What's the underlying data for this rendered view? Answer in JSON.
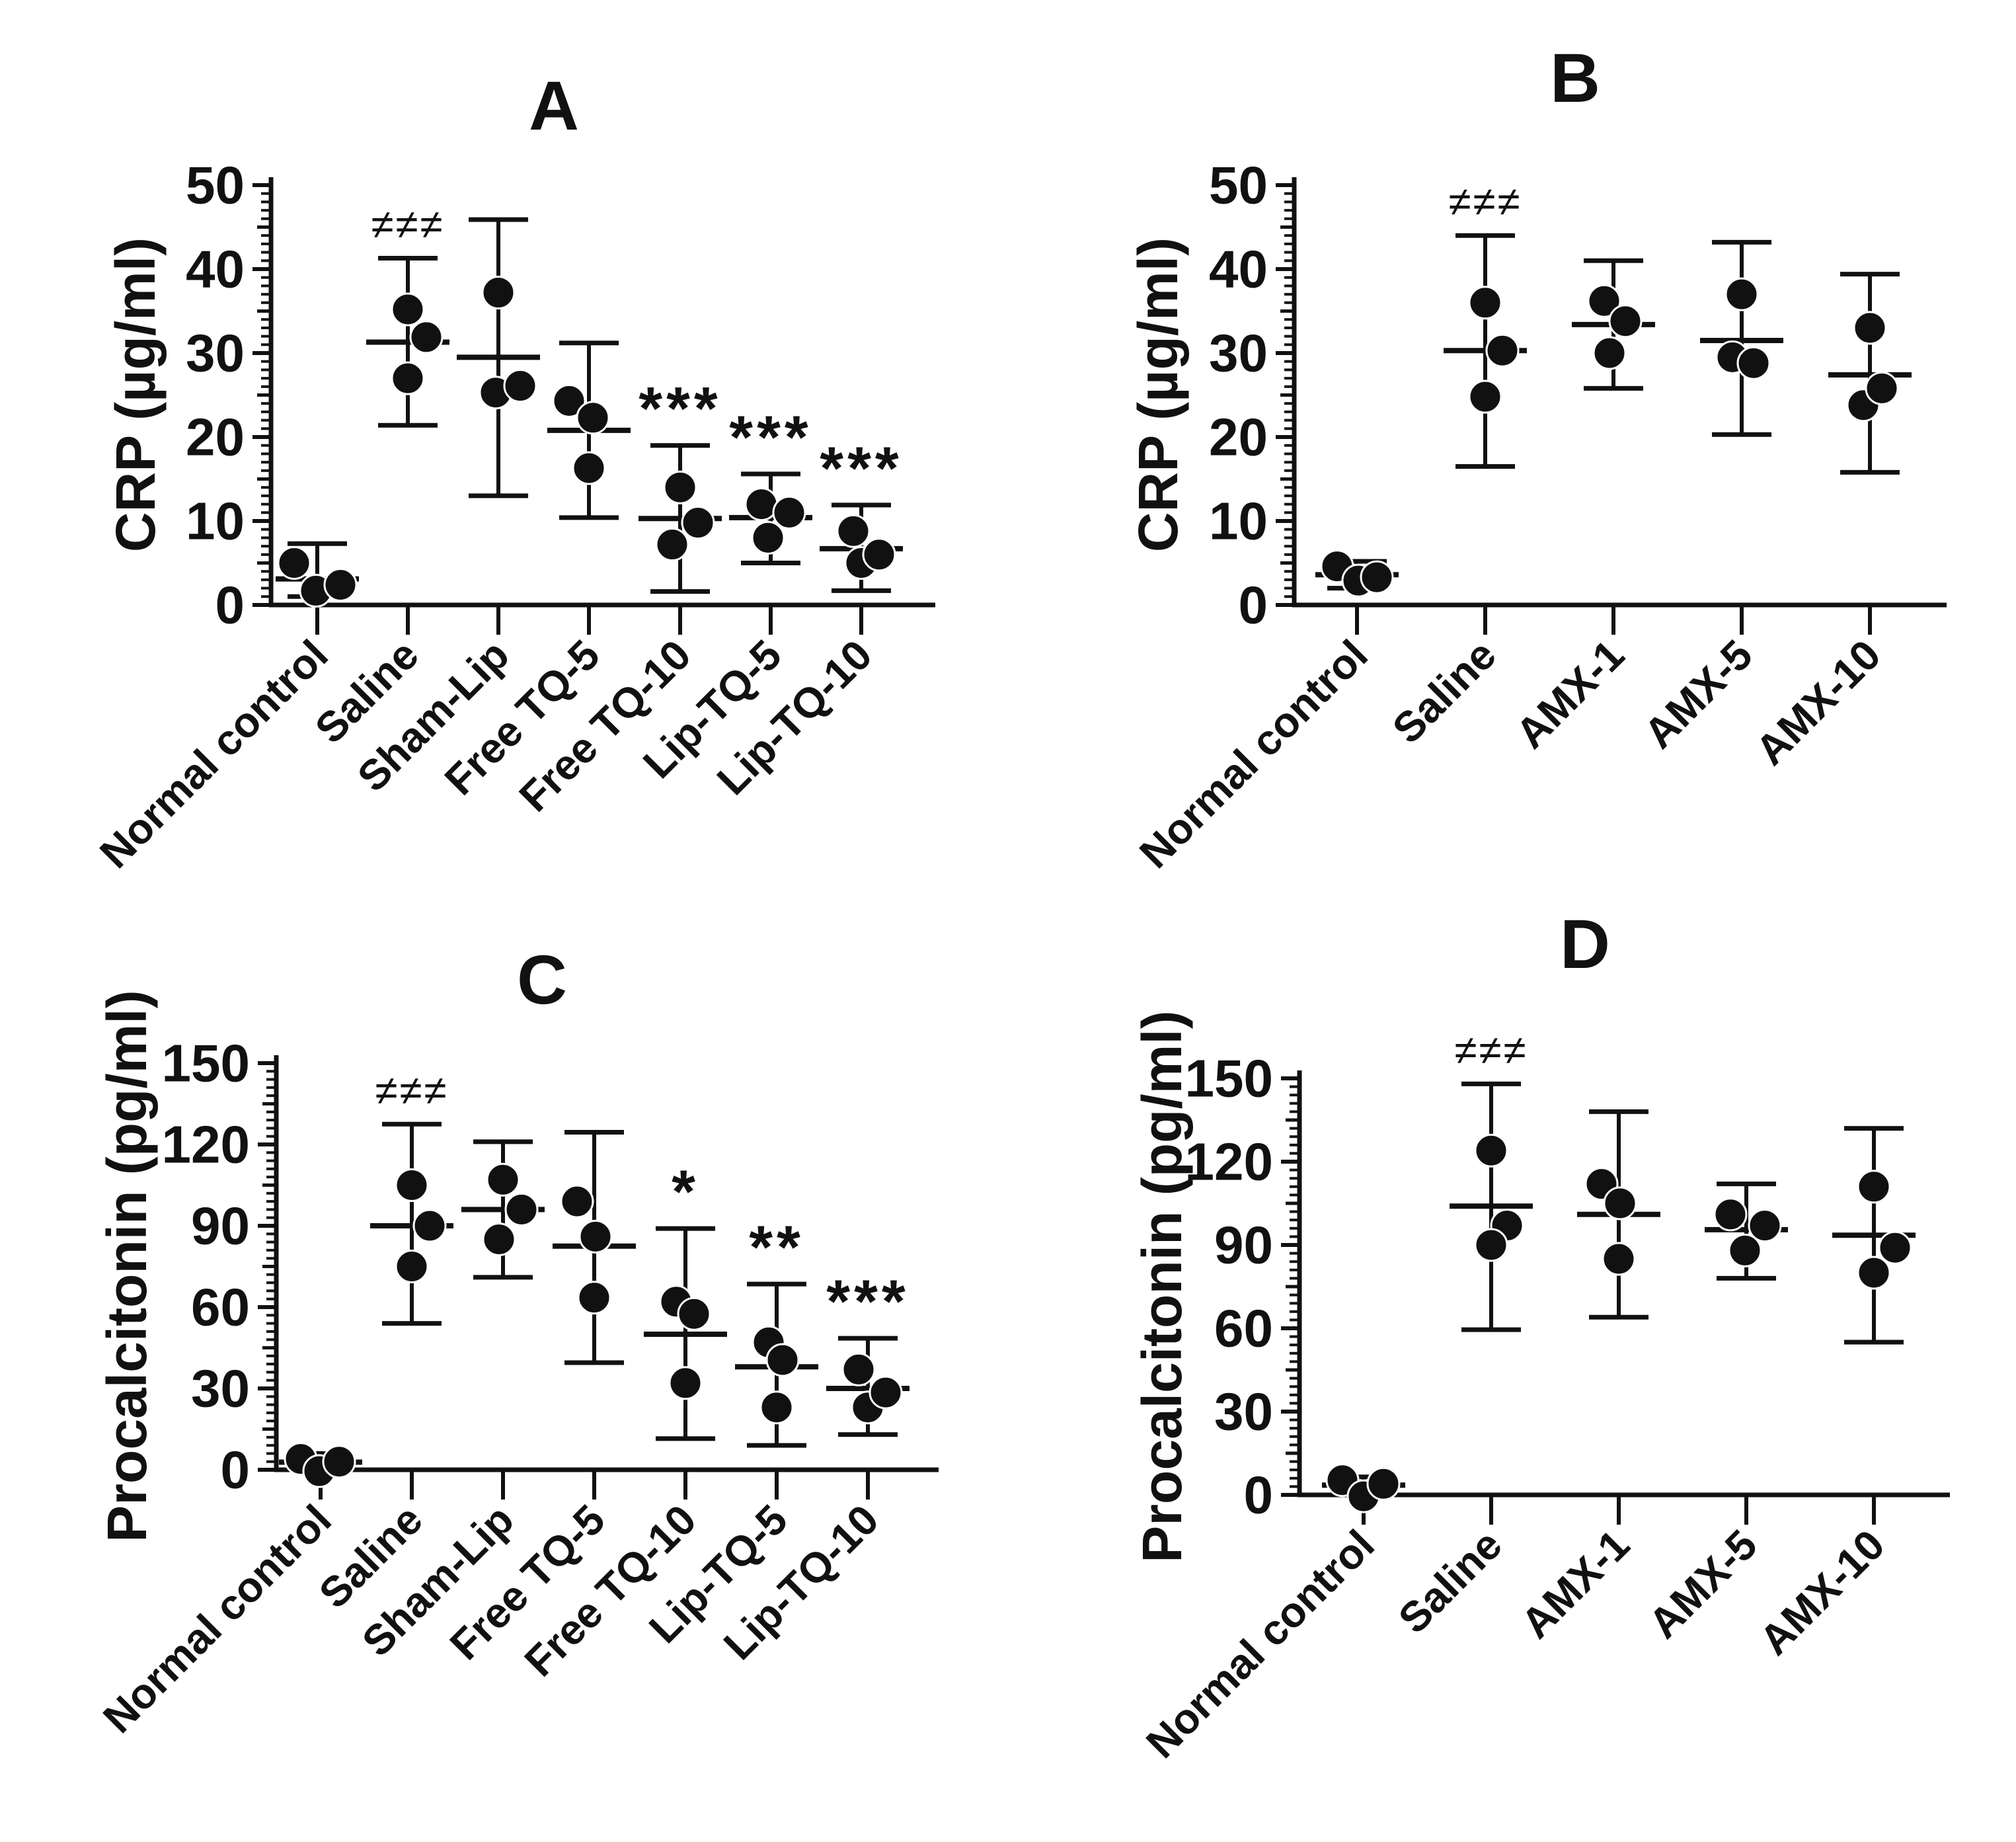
{
  "colors": {
    "ink": "#111111",
    "background": "#ffffff"
  },
  "chart_data": [
    {
      "type": "scatter",
      "panel": "A",
      "title": "A",
      "ylabel": "CRP (µg/ml)",
      "ylim": [
        0,
        50
      ],
      "yticks": [
        0,
        10,
        20,
        30,
        40,
        50
      ],
      "minor_tick_step": 1,
      "medium_tick_step": 5,
      "grid": "off",
      "legend": "none",
      "categories": [
        "Normal control",
        "Saline",
        "Sham-Lip",
        "Free TQ-5",
        "Free TQ-10",
        "Lip-TQ-5",
        "Lip-TQ-10"
      ],
      "groups": [
        {
          "label": "Normal control",
          "sig": "",
          "mean": 3.1,
          "err_lo": 1.0,
          "err_hi": 7.3,
          "points": [
            {
              "dx": -35,
              "y": 5.0
            },
            {
              "dx": -2,
              "y": 1.7
            },
            {
              "dx": 35,
              "y": 2.4
            }
          ]
        },
        {
          "label": "Saline",
          "sig": "≠≠≠",
          "mean": 31.3,
          "err_lo": 21.4,
          "err_hi": 41.3,
          "points": [
            {
              "dx": 0,
              "y": 35.2
            },
            {
              "dx": 28,
              "y": 31.9
            },
            {
              "dx": 0,
              "y": 27.0
            }
          ]
        },
        {
          "label": "Sham-Lip",
          "sig": "",
          "mean": 29.5,
          "err_lo": 13.0,
          "err_hi": 45.9,
          "points": [
            {
              "dx": 0,
              "y": 37.2
            },
            {
              "dx": -4,
              "y": 25.3
            },
            {
              "dx": 33,
              "y": 26.1
            }
          ]
        },
        {
          "label": "Free TQ-5",
          "sig": "",
          "mean": 20.8,
          "err_lo": 10.4,
          "err_hi": 31.2,
          "points": [
            {
              "dx": -30,
              "y": 24.3
            },
            {
              "dx": 6,
              "y": 22.3
            },
            {
              "dx": 0,
              "y": 16.3
            }
          ]
        },
        {
          "label": "Free TQ-10",
          "sig": "***",
          "mean": 10.3,
          "err_lo": 1.6,
          "err_hi": 19.0,
          "points": [
            {
              "dx": 0,
              "y": 14.0
            },
            {
              "dx": -12,
              "y": 7.2
            },
            {
              "dx": 27,
              "y": 9.8
            }
          ]
        },
        {
          "label": "Lip-TQ-5",
          "sig": "***",
          "mean": 10.4,
          "err_lo": 5.0,
          "err_hi": 15.6,
          "points": [
            {
              "dx": -14,
              "y": 12.0
            },
            {
              "dx": 28,
              "y": 11.0
            },
            {
              "dx": -4,
              "y": 8.0
            }
          ]
        },
        {
          "label": "Lip-TQ-10",
          "sig": "***",
          "mean": 6.7,
          "err_lo": 1.7,
          "err_hi": 11.9,
          "points": [
            {
              "dx": -12,
              "y": 8.8
            },
            {
              "dx": 0,
              "y": 5.0
            },
            {
              "dx": 27,
              "y": 6.0
            }
          ]
        }
      ]
    },
    {
      "type": "scatter",
      "panel": "B",
      "title": "B",
      "ylabel": "CRP (µg/ml)",
      "ylim": [
        0,
        50
      ],
      "yticks": [
        0,
        10,
        20,
        30,
        40,
        50
      ],
      "minor_tick_step": 1,
      "medium_tick_step": 5,
      "grid": "off",
      "legend": "none",
      "categories": [
        "Normal control",
        "Saline",
        "AMX-1",
        "AMX-5",
        "AMX-10"
      ],
      "groups": [
        {
          "label": "Normal control",
          "sig": "",
          "mean": 3.6,
          "err_lo": 2.0,
          "err_hi": 5.2,
          "points": [
            {
              "dx": -30,
              "y": 4.6
            },
            {
              "dx": 2,
              "y": 2.9
            },
            {
              "dx": 30,
              "y": 3.3
            }
          ]
        },
        {
          "label": "Saline",
          "sig": "≠≠≠",
          "mean": 30.3,
          "err_lo": 16.5,
          "err_hi": 44.0,
          "points": [
            {
              "dx": 0,
              "y": 36.0
            },
            {
              "dx": 26,
              "y": 30.3
            },
            {
              "dx": 0,
              "y": 24.8
            }
          ]
        },
        {
          "label": "AMX-1",
          "sig": "",
          "mean": 33.4,
          "err_lo": 25.8,
          "err_hi": 41.0,
          "points": [
            {
              "dx": -14,
              "y": 36.2
            },
            {
              "dx": 18,
              "y": 33.8
            },
            {
              "dx": -6,
              "y": 30.0
            }
          ]
        },
        {
          "label": "AMX-5",
          "sig": "",
          "mean": 31.5,
          "err_lo": 20.3,
          "err_hi": 43.2,
          "points": [
            {
              "dx": 0,
              "y": 37.0
            },
            {
              "dx": -14,
              "y": 29.5
            },
            {
              "dx": 18,
              "y": 28.8
            }
          ]
        },
        {
          "label": "AMX-10",
          "sig": "",
          "mean": 27.4,
          "err_lo": 15.8,
          "err_hi": 39.4,
          "points": [
            {
              "dx": 0,
              "y": 33.0
            },
            {
              "dx": -10,
              "y": 23.8
            },
            {
              "dx": 18,
              "y": 25.8
            }
          ]
        }
      ]
    },
    {
      "type": "scatter",
      "panel": "C",
      "title": "C",
      "ylabel": "Procalcitonin (pg/ml)",
      "ylim": [
        0,
        150
      ],
      "yticks": [
        0,
        30,
        60,
        90,
        120,
        150
      ],
      "minor_tick_step": 3,
      "medium_tick_step": 15,
      "grid": "off",
      "legend": "none",
      "categories": [
        "Normal control",
        "Saline",
        "Sham-Lip",
        "Free TQ-5",
        "Free TQ-10",
        "Lip-TQ-5",
        "Lip-TQ-10"
      ],
      "groups": [
        {
          "label": "Normal control",
          "sig": "",
          "mean": 2.8,
          "err_lo": 0.6,
          "err_hi": 6.0,
          "points": [
            {
              "dx": -30,
              "y": 4.0
            },
            {
              "dx": -2,
              "y": -0.5
            },
            {
              "dx": 28,
              "y": 3.0
            }
          ]
        },
        {
          "label": "Saline",
          "sig": "≠≠≠",
          "mean": 90.0,
          "err_lo": 54.0,
          "err_hi": 127.5,
          "points": [
            {
              "dx": 0,
              "y": 105.0
            },
            {
              "dx": 27,
              "y": 90.0
            },
            {
              "dx": 0,
              "y": 75.0
            }
          ]
        },
        {
          "label": "Sham-Lip",
          "sig": "",
          "mean": 96.0,
          "err_lo": 71.0,
          "err_hi": 121.0,
          "points": [
            {
              "dx": 0,
              "y": 107.0
            },
            {
              "dx": 28,
              "y": 96.0
            },
            {
              "dx": -6,
              "y": 85.0
            }
          ]
        },
        {
          "label": "Free TQ-5",
          "sig": "",
          "mean": 82.5,
          "err_lo": 39.5,
          "err_hi": 124.5,
          "points": [
            {
              "dx": -26,
              "y": 99.0
            },
            {
              "dx": 2,
              "y": 86.0
            },
            {
              "dx": 0,
              "y": 63.5
            }
          ]
        },
        {
          "label": "Free TQ-10",
          "sig": "*",
          "mean": 50.0,
          "err_lo": 11.5,
          "err_hi": 89.0,
          "points": [
            {
              "dx": -14,
              "y": 62.0
            },
            {
              "dx": 13,
              "y": 57.5
            },
            {
              "dx": 0,
              "y": 32.0
            }
          ]
        },
        {
          "label": "Lip-TQ-5",
          "sig": "**",
          "mean": 38.0,
          "err_lo": 9.0,
          "err_hi": 68.5,
          "points": [
            {
              "dx": -12,
              "y": 47.0
            },
            {
              "dx": 9,
              "y": 40.5
            },
            {
              "dx": 0,
              "y": 23.0
            }
          ]
        },
        {
          "label": "Lip-TQ-10",
          "sig": "***",
          "mean": 30.0,
          "err_lo": 13.0,
          "err_hi": 48.5,
          "points": [
            {
              "dx": -14,
              "y": 37.0
            },
            {
              "dx": 0,
              "y": 23.0
            },
            {
              "dx": 27,
              "y": 28.5
            }
          ]
        }
      ]
    },
    {
      "type": "scatter",
      "panel": "D",
      "title": "D",
      "ylabel": "Procalcitonin (pg/ml)",
      "ylim": [
        0,
        150
      ],
      "yticks": [
        0,
        30,
        60,
        90,
        120,
        150
      ],
      "minor_tick_step": 3,
      "medium_tick_step": 15,
      "grid": "off",
      "legend": "none",
      "categories": [
        "Normal control",
        "Saline",
        "AMX-1",
        "AMX-5",
        "AMX-10"
      ],
      "groups": [
        {
          "label": "Normal control",
          "sig": "",
          "mean": 3.5,
          "err_lo": 1.0,
          "err_hi": 6.5,
          "points": [
            {
              "dx": -32,
              "y": 5.3
            },
            {
              "dx": 0,
              "y": -0.5
            },
            {
              "dx": 30,
              "y": 4.0
            }
          ]
        },
        {
          "label": "Saline",
          "sig": "≠≠≠",
          "mean": 104.0,
          "err_lo": 59.5,
          "err_hi": 148.0,
          "points": [
            {
              "dx": 0,
              "y": 124.0
            },
            {
              "dx": 24,
              "y": 97.0
            },
            {
              "dx": 0,
              "y": 90.0
            }
          ]
        },
        {
          "label": "AMX-1",
          "sig": "",
          "mean": 101.0,
          "err_lo": 64.0,
          "err_hi": 138.0,
          "points": [
            {
              "dx": -26,
              "y": 112.0
            },
            {
              "dx": 2,
              "y": 105.0
            },
            {
              "dx": 0,
              "y": 85.0
            }
          ]
        },
        {
          "label": "AMX-5",
          "sig": "",
          "mean": 95.5,
          "err_lo": 78.0,
          "err_hi": 112.0,
          "points": [
            {
              "dx": -24,
              "y": 101.0
            },
            {
              "dx": 28,
              "y": 97.0
            },
            {
              "dx": -2,
              "y": 88.0
            }
          ]
        },
        {
          "label": "AMX-10",
          "sig": "",
          "mean": 93.5,
          "err_lo": 55.0,
          "err_hi": 132.0,
          "points": [
            {
              "dx": 0,
              "y": 111.0
            },
            {
              "dx": 32,
              "y": 89.0
            },
            {
              "dx": 0,
              "y": 80.0
            }
          ]
        }
      ]
    }
  ]
}
